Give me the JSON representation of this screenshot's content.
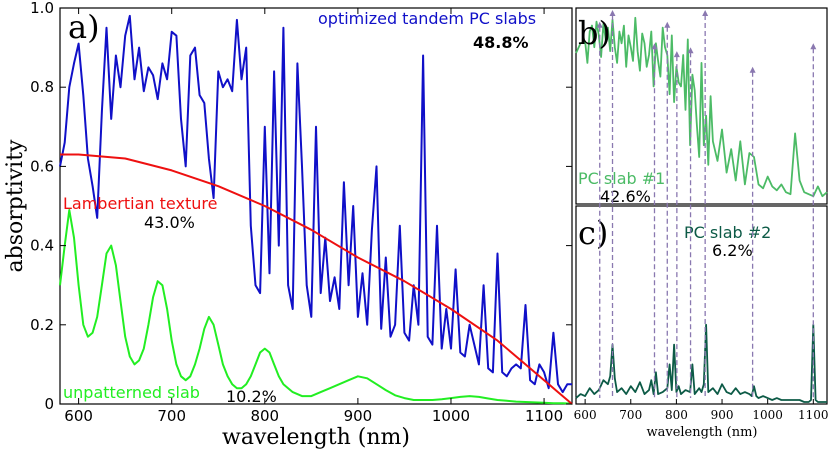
{
  "colors": {
    "tandem": "#1010c8",
    "lambertian": "#ee1010",
    "unpatterned": "#22ee22",
    "slab1": "#4cbb66",
    "slab2": "#0c5a46",
    "markers": "#8a78b0"
  },
  "chart_data": [
    {
      "panel": "a)",
      "type": "line",
      "xlabel": "wavelength (nm)",
      "ylabel": "absorptivity",
      "xlim": [
        580,
        1130
      ],
      "ylim": [
        0,
        1.0
      ],
      "xticks": [
        600,
        700,
        800,
        900,
        1000,
        1100
      ],
      "yticks": [
        0,
        0.2,
        0.4,
        0.6,
        0.8,
        1.0
      ],
      "ytick_labels": [
        "0",
        "0.2",
        "0.4",
        "0.6",
        "0.8",
        "1.0"
      ],
      "grid": false,
      "series": [
        {
          "name": "optimized tandem PC slabs",
          "summary": "48.8%",
          "x": [
            580,
            585,
            590,
            595,
            600,
            605,
            610,
            615,
            620,
            625,
            630,
            635,
            640,
            645,
            650,
            655,
            660,
            665,
            670,
            675,
            680,
            685,
            690,
            695,
            700,
            705,
            710,
            715,
            720,
            725,
            730,
            735,
            740,
            745,
            750,
            755,
            760,
            765,
            770,
            775,
            780,
            785,
            790,
            795,
            800,
            805,
            810,
            815,
            820,
            825,
            830,
            835,
            840,
            845,
            850,
            855,
            860,
            865,
            870,
            875,
            880,
            885,
            890,
            895,
            900,
            905,
            910,
            915,
            920,
            925,
            930,
            935,
            940,
            945,
            950,
            955,
            960,
            965,
            970,
            975,
            980,
            985,
            990,
            995,
            1000,
            1005,
            1010,
            1015,
            1020,
            1025,
            1030,
            1035,
            1040,
            1045,
            1050,
            1055,
            1060,
            1065,
            1070,
            1075,
            1080,
            1085,
            1090,
            1095,
            1100,
            1105,
            1110,
            1115,
            1120,
            1125,
            1130
          ],
          "y": [
            0.6,
            0.66,
            0.8,
            0.86,
            0.91,
            0.78,
            0.62,
            0.55,
            0.47,
            0.74,
            0.95,
            0.72,
            0.88,
            0.8,
            0.93,
            0.98,
            0.82,
            0.9,
            0.79,
            0.85,
            0.83,
            0.77,
            0.86,
            0.82,
            0.94,
            0.93,
            0.72,
            0.6,
            0.88,
            0.9,
            0.78,
            0.76,
            0.62,
            0.52,
            0.84,
            0.8,
            0.82,
            0.79,
            0.97,
            0.82,
            0.9,
            0.45,
            0.3,
            0.28,
            0.7,
            0.33,
            0.84,
            0.4,
            0.95,
            0.3,
            0.24,
            0.86,
            0.6,
            0.3,
            0.22,
            0.7,
            0.28,
            0.42,
            0.26,
            0.32,
            0.24,
            0.56,
            0.3,
            0.5,
            0.22,
            0.33,
            0.2,
            0.44,
            0.6,
            0.19,
            0.37,
            0.17,
            0.2,
            0.45,
            0.18,
            0.16,
            0.3,
            0.2,
            0.88,
            0.17,
            0.15,
            0.45,
            0.14,
            0.24,
            0.14,
            0.34,
            0.13,
            0.12,
            0.2,
            0.15,
            0.1,
            0.3,
            0.09,
            0.08,
            0.38,
            0.08,
            0.07,
            0.09,
            0.1,
            0.09,
            0.25,
            0.06,
            0.05,
            0.1,
            0.08,
            0.04,
            0.18,
            0.05,
            0.03,
            0.05,
            0.05
          ]
        },
        {
          "name": "Lambertian texture",
          "summary": "43.0%",
          "x": [
            580,
            600,
            650,
            700,
            750,
            800,
            850,
            900,
            950,
            1000,
            1050,
            1080,
            1100,
            1115,
            1130
          ],
          "y": [
            0.63,
            0.63,
            0.62,
            0.59,
            0.55,
            0.5,
            0.44,
            0.37,
            0.31,
            0.24,
            0.16,
            0.1,
            0.06,
            0.03,
            0.0
          ]
        },
        {
          "name": "unpatterned slab",
          "summary": "10.2%",
          "x": [
            580,
            585,
            590,
            595,
            600,
            605,
            610,
            615,
            620,
            625,
            630,
            635,
            640,
            645,
            650,
            655,
            660,
            665,
            670,
            675,
            680,
            685,
            690,
            695,
            700,
            705,
            710,
            715,
            720,
            725,
            730,
            735,
            740,
            745,
            750,
            755,
            760,
            765,
            770,
            775,
            780,
            785,
            790,
            795,
            800,
            805,
            810,
            815,
            820,
            825,
            830,
            840,
            850,
            860,
            870,
            880,
            890,
            900,
            910,
            920,
            930,
            940,
            950,
            960,
            970,
            980,
            990,
            1000,
            1010,
            1020,
            1030,
            1040,
            1050,
            1060,
            1070,
            1080,
            1090,
            1100,
            1110,
            1120,
            1130
          ],
          "y": [
            0.3,
            0.4,
            0.49,
            0.42,
            0.3,
            0.2,
            0.17,
            0.18,
            0.22,
            0.3,
            0.38,
            0.4,
            0.35,
            0.26,
            0.17,
            0.12,
            0.1,
            0.11,
            0.14,
            0.2,
            0.27,
            0.31,
            0.3,
            0.24,
            0.16,
            0.1,
            0.07,
            0.06,
            0.07,
            0.1,
            0.14,
            0.19,
            0.22,
            0.2,
            0.15,
            0.1,
            0.07,
            0.05,
            0.04,
            0.04,
            0.05,
            0.07,
            0.1,
            0.13,
            0.14,
            0.13,
            0.1,
            0.07,
            0.05,
            0.04,
            0.03,
            0.02,
            0.02,
            0.03,
            0.04,
            0.05,
            0.06,
            0.07,
            0.065,
            0.05,
            0.035,
            0.022,
            0.015,
            0.01,
            0.01,
            0.01,
            0.012,
            0.015,
            0.018,
            0.02,
            0.018,
            0.014,
            0.01,
            0.008,
            0.006,
            0.005,
            0.004,
            0.003,
            0.002,
            0.002,
            0.001
          ]
        }
      ]
    },
    {
      "panel": "b)",
      "type": "line",
      "xlim": [
        580,
        1130
      ],
      "ylim": [
        0,
        1.0
      ],
      "series": [
        {
          "name": "PC slab #1",
          "summary": "42.6%",
          "x": [
            580,
            590,
            600,
            605,
            610,
            615,
            620,
            625,
            630,
            635,
            640,
            645,
            650,
            655,
            660,
            665,
            670,
            675,
            680,
            685,
            690,
            695,
            700,
            705,
            710,
            715,
            720,
            725,
            730,
            735,
            740,
            745,
            750,
            755,
            760,
            765,
            770,
            775,
            780,
            785,
            790,
            795,
            800,
            805,
            810,
            815,
            820,
            825,
            830,
            835,
            840,
            845,
            850,
            855,
            860,
            865,
            870,
            875,
            880,
            890,
            900,
            910,
            920,
            930,
            940,
            950,
            960,
            970,
            980,
            990,
            1000,
            1010,
            1020,
            1030,
            1040,
            1050,
            1060,
            1070,
            1080,
            1090,
            1100,
            1110,
            1120,
            1130
          ],
          "y": [
            0.77,
            0.82,
            0.83,
            0.72,
            0.88,
            0.91,
            0.8,
            0.93,
            0.86,
            0.75,
            0.92,
            0.84,
            0.9,
            0.78,
            0.94,
            0.8,
            0.72,
            0.88,
            0.82,
            0.91,
            0.7,
            0.86,
            0.8,
            0.73,
            0.95,
            0.78,
            0.68,
            0.87,
            0.82,
            0.7,
            0.76,
            0.88,
            0.6,
            0.82,
            0.73,
            0.65,
            0.9,
            0.8,
            0.76,
            0.56,
            0.86,
            0.52,
            0.7,
            0.62,
            0.6,
            0.76,
            0.48,
            0.84,
            0.3,
            0.66,
            0.58,
            0.4,
            0.24,
            0.72,
            0.3,
            0.45,
            0.2,
            0.55,
            0.32,
            0.22,
            0.38,
            0.16,
            0.28,
            0.12,
            0.32,
            0.1,
            0.26,
            0.24,
            0.1,
            0.08,
            0.14,
            0.09,
            0.07,
            0.1,
            0.06,
            0.05,
            0.36,
            0.12,
            0.06,
            0.05,
            0.04,
            0.09,
            0.04,
            0.06
          ]
        }
      ]
    },
    {
      "panel": "c)",
      "type": "line",
      "xlabel": "wavelength (nm)",
      "xlim": [
        580,
        1130
      ],
      "ylim": [
        0,
        1.0
      ],
      "xticks": [
        600,
        700,
        800,
        900,
        1000,
        1100
      ],
      "xtick_labels": [
        "600",
        "700",
        "800",
        "900",
        "1000",
        "1100"
      ],
      "series": [
        {
          "name": "PC slab #2",
          "summary": "6.2%",
          "x": [
            580,
            590,
            600,
            610,
            620,
            630,
            640,
            650,
            655,
            660,
            665,
            670,
            680,
            690,
            700,
            710,
            720,
            730,
            740,
            745,
            750,
            755,
            760,
            770,
            780,
            785,
            790,
            795,
            800,
            805,
            810,
            820,
            830,
            835,
            840,
            850,
            855,
            860,
            865,
            870,
            880,
            890,
            900,
            910,
            920,
            930,
            940,
            950,
            960,
            965,
            970,
            975,
            980,
            990,
            1000,
            1010,
            1020,
            1030,
            1040,
            1050,
            1060,
            1070,
            1080,
            1090,
            1095,
            1100,
            1105,
            1110,
            1120,
            1130
          ],
          "y": [
            0.03,
            0.05,
            0.04,
            0.08,
            0.05,
            0.07,
            0.12,
            0.1,
            0.14,
            0.3,
            0.13,
            0.06,
            0.08,
            0.05,
            0.09,
            0.06,
            0.11,
            0.05,
            0.07,
            0.12,
            0.05,
            0.16,
            0.05,
            0.06,
            0.08,
            0.2,
            0.07,
            0.3,
            0.06,
            0.09,
            0.05,
            0.07,
            0.06,
            0.2,
            0.05,
            0.08,
            0.06,
            0.1,
            0.4,
            0.06,
            0.08,
            0.05,
            0.1,
            0.06,
            0.05,
            0.08,
            0.05,
            0.06,
            0.05,
            0.04,
            0.09,
            0.04,
            0.03,
            0.04,
            0.03,
            0.02,
            0.03,
            0.02,
            0.02,
            0.02,
            0.02,
            0.02,
            0.01,
            0.01,
            0.02,
            0.4,
            0.02,
            0.01,
            0.01,
            0.01
          ]
        }
      ]
    }
  ],
  "marker_lines": {
    "x": [
      632,
      660,
      752,
      780,
      801,
      831,
      863,
      967,
      1100
    ],
    "top_y": [
      0.93,
      0.99,
      0.82,
      0.93,
      0.78,
      0.8,
      0.99,
      0.7,
      0.82
    ]
  }
}
